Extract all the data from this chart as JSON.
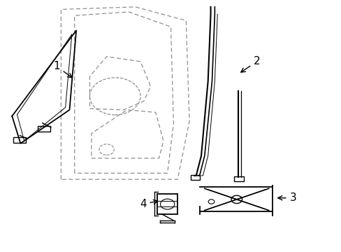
{
  "background_color": "#ffffff",
  "line_color": "#000000",
  "dashed_color": "#888888",
  "label_fontsize": 11
}
